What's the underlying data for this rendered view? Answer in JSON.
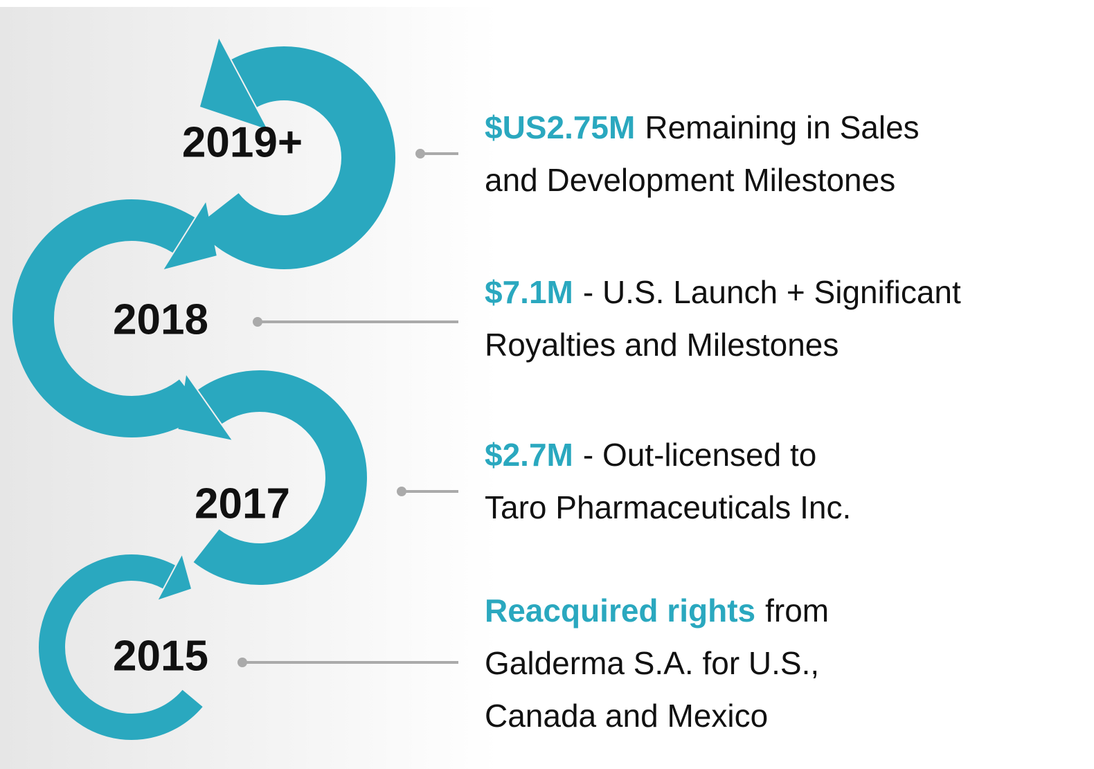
{
  "items": [
    {
      "year": "2019+",
      "highlight": "$US2.75M",
      "rest": [
        "Remaining in Sales",
        "and Development Milestones"
      ]
    },
    {
      "year": "2018",
      "highlight": "$7.1M",
      "rest": [
        "- U.S. Launch + Significant",
        "Royalties and Milestones"
      ]
    },
    {
      "year": "2017",
      "highlight": "$2.7M",
      "rest": [
        "- Out-licensed to",
        "Taro Pharmaceuticals Inc."
      ]
    },
    {
      "year": "2015",
      "highlight": "Reacquired rights",
      "rest": [
        "from",
        "Galderma S.A. for U.S.,",
        "Canada and Mexico"
      ]
    }
  ]
}
